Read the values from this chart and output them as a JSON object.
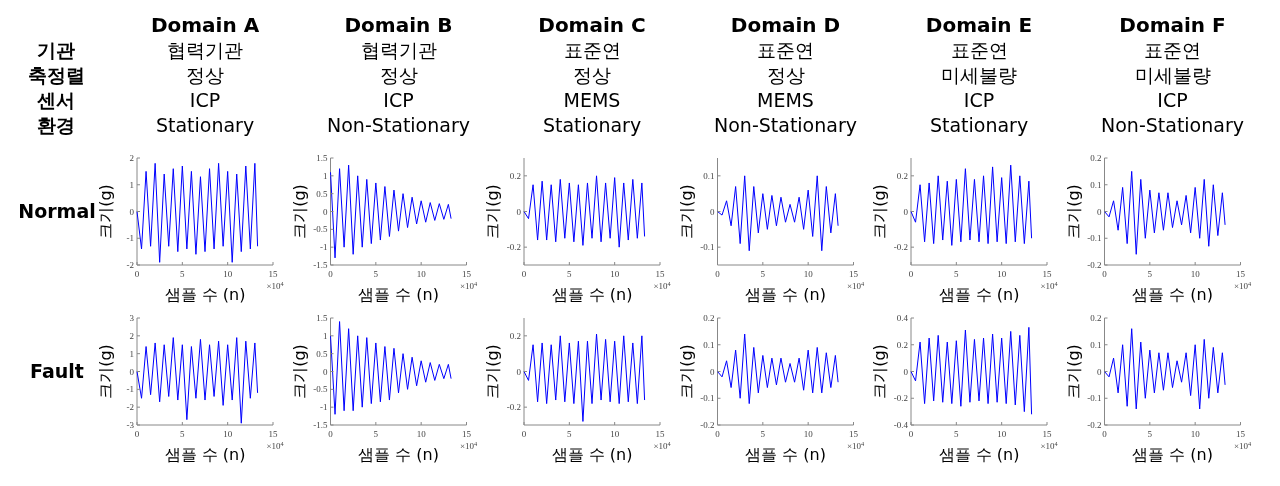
{
  "chart_data": [
    {
      "type": "other",
      "annotations": [
        "기관",
        "축정렬",
        "센서",
        "환경"
      ]
    },
    {
      "type": "line",
      "title": "Domain A",
      "subtitle": "협력기관\n정상\nICP\nStationary",
      "xlabel": "샘플 수 (n)",
      "ylabel": "크기(g)",
      "annotations": [
        "Normal",
        "×10$^{4}$"
      ],
      "color": "#0000ff",
      "xlim": [
        0,
        15
      ],
      "xticks": [
        0,
        5,
        10,
        15
      ],
      "ylim": [
        -2,
        2
      ],
      "yticks": [
        -2,
        -1,
        0,
        1,
        2
      ],
      "x": [
        0,
        0.5,
        1,
        1.5,
        2,
        2.5,
        3,
        3.5,
        4,
        4.5,
        5,
        5.5,
        6,
        6.5,
        7,
        7.5,
        8,
        8.5,
        9,
        9.5,
        10,
        10.5,
        11,
        11.5,
        12,
        12.5,
        13,
        13.3
      ],
      "values": [
        0,
        -1.4,
        1.5,
        -1.3,
        1.8,
        -1.9,
        1.4,
        -1.3,
        1.6,
        -1.5,
        1.7,
        -1.4,
        1.5,
        -1.6,
        1.3,
        -1.5,
        1.6,
        -1.4,
        1.8,
        -1.3,
        1.5,
        -1.9,
        1.4,
        -1.5,
        1.7,
        -1.4,
        1.8,
        -1.3
      ]
    },
    {
      "type": "line",
      "title": "Domain B",
      "subtitle": "협력기관\n정상\nICP\nNon-Stationary",
      "xlabel": "샘플 수 (n)",
      "ylabel": "크기(g)",
      "annotations": [
        "×10$^{4}$"
      ],
      "color": "#0000ff",
      "xlim": [
        0,
        15
      ],
      "xticks": [
        0,
        5,
        10,
        15
      ],
      "ylim": [
        -1.5,
        1.5
      ],
      "yticks": [
        -1.5,
        -1,
        -0.5,
        0,
        0.5,
        1,
        1.5
      ],
      "x": [
        0,
        0.5,
        1,
        1.5,
        2,
        2.5,
        3,
        3.5,
        4,
        4.5,
        5,
        5.5,
        6,
        6.5,
        7,
        7.5,
        8,
        8.5,
        9,
        9.5,
        10,
        10.5,
        11,
        11.5,
        12,
        12.5,
        13,
        13.3
      ],
      "values": [
        1.1,
        -1.3,
        1.2,
        -1.0,
        1.3,
        -1.2,
        1.0,
        -1.0,
        0.9,
        -0.9,
        0.8,
        -0.8,
        0.7,
        -0.7,
        0.6,
        -0.55,
        0.5,
        -0.45,
        0.4,
        -0.35,
        0.3,
        -0.3,
        0.25,
        -0.25,
        0.22,
        -0.22,
        0.2,
        -0.2
      ]
    },
    {
      "type": "line",
      "title": "Domain C",
      "subtitle": "표준연\n정상\nMEMS\nStationary",
      "xlabel": "샘플 수 (n)",
      "ylabel": "크기(g)",
      "annotations": [
        "×10$^{4}$"
      ],
      "color": "#0000ff",
      "xlim": [
        0,
        15
      ],
      "xticks": [
        0,
        5,
        10,
        15
      ],
      "ylim": [
        -0.3,
        0.3
      ],
      "yticks": [
        -0.2,
        0,
        0.2
      ],
      "x": [
        0,
        0.5,
        1,
        1.5,
        2,
        2.5,
        3,
        3.5,
        4,
        4.5,
        5,
        5.5,
        6,
        6.5,
        7,
        7.5,
        8,
        8.5,
        9,
        9.5,
        10,
        10.5,
        11,
        11.5,
        12,
        12.5,
        13,
        13.3
      ],
      "values": [
        0,
        -0.04,
        0.15,
        -0.16,
        0.17,
        -0.16,
        0.15,
        -0.17,
        0.18,
        -0.15,
        0.16,
        -0.17,
        0.15,
        -0.19,
        0.16,
        -0.15,
        0.2,
        -0.17,
        0.16,
        -0.15,
        0.19,
        -0.2,
        0.16,
        -0.16,
        0.18,
        -0.15,
        0.16,
        -0.14
      ]
    },
    {
      "type": "line",
      "title": "Domain D",
      "subtitle": "표준연\n정상\nMEMS\nNon-Stationary",
      "xlabel": "샘플 수 (n)",
      "ylabel": "크기(g)",
      "annotations": [
        "×10$^{4}$"
      ],
      "color": "#0000ff",
      "xlim": [
        0,
        15
      ],
      "xticks": [
        0,
        5,
        10,
        15
      ],
      "ylim": [
        -0.15,
        0.15
      ],
      "yticks": [
        -0.1,
        0,
        0.1
      ],
      "x": [
        0,
        0.5,
        1,
        1.5,
        2,
        2.5,
        3,
        3.5,
        4,
        4.5,
        5,
        5.5,
        6,
        6.5,
        7,
        7.5,
        8,
        8.5,
        9,
        9.5,
        10,
        10.5,
        11,
        11.5,
        12,
        12.5,
        13,
        13.3
      ],
      "values": [
        0,
        -0.01,
        0.03,
        -0.04,
        0.07,
        -0.09,
        0.1,
        -0.11,
        0.07,
        -0.06,
        0.05,
        -0.05,
        0.045,
        -0.04,
        0.04,
        -0.03,
        0.02,
        -0.03,
        0.04,
        -0.05,
        0.06,
        -0.07,
        0.1,
        -0.11,
        0.07,
        -0.06,
        0.05,
        -0.04
      ]
    },
    {
      "type": "line",
      "title": "Domain E",
      "subtitle": "표준연\n미세불량\nICP\nStationary",
      "xlabel": "샘플 수 (n)",
      "ylabel": "크기(g)",
      "annotations": [
        "×10$^{4}$"
      ],
      "color": "#0000ff",
      "xlim": [
        0,
        15
      ],
      "xticks": [
        0,
        5,
        10,
        15
      ],
      "ylim": [
        -0.3,
        0.3
      ],
      "yticks": [
        -0.2,
        0,
        0.2
      ],
      "x": [
        0,
        0.5,
        1,
        1.5,
        2,
        2.5,
        3,
        3.5,
        4,
        4.5,
        5,
        5.5,
        6,
        6.5,
        7,
        7.5,
        8,
        8.5,
        9,
        9.5,
        10,
        10.5,
        11,
        11.5,
        12,
        12.5,
        13,
        13.3
      ],
      "values": [
        0,
        -0.06,
        0.15,
        -0.17,
        0.16,
        -0.18,
        0.2,
        -0.16,
        0.17,
        -0.19,
        0.18,
        -0.17,
        0.24,
        -0.16,
        0.18,
        -0.17,
        0.2,
        -0.18,
        0.25,
        -0.17,
        0.19,
        -0.18,
        0.26,
        -0.17,
        0.2,
        -0.18,
        0.17,
        -0.15
      ]
    },
    {
      "type": "line",
      "title": "Domain F",
      "subtitle": "표준연\n미세불량\nICP\nNon-Stationary",
      "xlabel": "샘플 수 (n)",
      "ylabel": "크기(g)",
      "annotations": [
        "×10$^{4}$"
      ],
      "color": "#0000ff",
      "xlim": [
        0,
        15
      ],
      "xticks": [
        0,
        5,
        10,
        15
      ],
      "ylim": [
        -0.2,
        0.2
      ],
      "yticks": [
        -0.2,
        -0.1,
        0,
        0.1,
        0.2
      ],
      "x": [
        0,
        0.5,
        1,
        1.5,
        2,
        2.5,
        3,
        3.5,
        4,
        4.5,
        5,
        5.5,
        6,
        6.5,
        7,
        7.5,
        8,
        8.5,
        9,
        9.5,
        10,
        10.5,
        11,
        11.5,
        12,
        12.5,
        13,
        13.3
      ],
      "values": [
        0,
        -0.02,
        0.04,
        -0.07,
        0.09,
        -0.12,
        0.15,
        -0.16,
        0.12,
        -0.1,
        0.08,
        -0.08,
        0.07,
        -0.07,
        0.07,
        -0.06,
        0.04,
        -0.05,
        0.06,
        -0.08,
        0.09,
        -0.1,
        0.12,
        -0.13,
        0.1,
        -0.09,
        0.07,
        -0.05
      ]
    },
    {
      "type": "line",
      "xlabel": "샘플 수 (n)",
      "ylabel": "크기(g)",
      "annotations": [
        "Fault",
        "×10$^{4}$"
      ],
      "color": "#0000ff",
      "xlim": [
        0,
        15
      ],
      "xticks": [
        0,
        5,
        10,
        15
      ],
      "ylim": [
        -3,
        3
      ],
      "yticks": [
        -3,
        -2,
        -1,
        0,
        1,
        2,
        3
      ],
      "x": [
        0,
        0.5,
        1,
        1.5,
        2,
        2.5,
        3,
        3.5,
        4,
        4.5,
        5,
        5.5,
        6,
        6.5,
        7,
        7.5,
        8,
        8.5,
        9,
        9.5,
        10,
        10.5,
        11,
        11.5,
        12,
        12.5,
        13,
        13.3
      ],
      "values": [
        0,
        -1.5,
        1.4,
        -1.3,
        1.6,
        -1.7,
        1.5,
        -1.4,
        1.9,
        -1.6,
        1.5,
        -2.7,
        1.4,
        -1.5,
        1.8,
        -1.6,
        1.5,
        -1.4,
        1.7,
        -1.9,
        1.5,
        -1.6,
        1.9,
        -2.9,
        1.7,
        -1.5,
        1.6,
        -1.2
      ]
    },
    {
      "type": "line",
      "xlabel": "샘플 수 (n)",
      "ylabel": "크기(g)",
      "annotations": [
        "×10$^{4}$"
      ],
      "color": "#0000ff",
      "xlim": [
        0,
        15
      ],
      "xticks": [
        0,
        5,
        10,
        15
      ],
      "ylim": [
        -1.5,
        1.5
      ],
      "yticks": [
        -1.5,
        -1,
        -0.5,
        0,
        0.5,
        1,
        1.5
      ],
      "x": [
        0,
        0.5,
        1,
        1.5,
        2,
        2.5,
        3,
        3.5,
        4,
        4.5,
        5,
        5.5,
        6,
        6.5,
        7,
        7.5,
        8,
        8.5,
        9,
        9.5,
        10,
        10.5,
        11,
        11.5,
        12,
        12.5,
        13,
        13.3
      ],
      "values": [
        1.0,
        -1.2,
        1.4,
        -1.1,
        1.2,
        -1.1,
        1.0,
        -1.0,
        0.95,
        -0.9,
        0.8,
        -0.85,
        0.7,
        -0.8,
        0.65,
        -0.6,
        0.5,
        -0.5,
        0.4,
        -0.4,
        0.3,
        -0.3,
        0.25,
        -0.25,
        0.2,
        -0.2,
        0.2,
        -0.2
      ]
    },
    {
      "type": "line",
      "xlabel": "샘플 수 (n)",
      "ylabel": "크기(g)",
      "annotations": [
        "×10$^{4}$"
      ],
      "color": "#0000ff",
      "xlim": [
        0,
        15
      ],
      "xticks": [
        0,
        5,
        10,
        15
      ],
      "ylim": [
        -0.3,
        0.3
      ],
      "yticks": [
        -0.2,
        0,
        0.2
      ],
      "x": [
        0,
        0.5,
        1,
        1.5,
        2,
        2.5,
        3,
        3.5,
        4,
        4.5,
        5,
        5.5,
        6,
        6.5,
        7,
        7.5,
        8,
        8.5,
        9,
        9.5,
        10,
        10.5,
        11,
        11.5,
        12,
        12.5,
        13,
        13.3
      ],
      "values": [
        0,
        -0.05,
        0.15,
        -0.17,
        0.16,
        -0.18,
        0.15,
        -0.16,
        0.2,
        -0.17,
        0.16,
        -0.18,
        0.17,
        -0.28,
        0.17,
        -0.18,
        0.21,
        -0.16,
        0.18,
        -0.17,
        0.17,
        -0.18,
        0.2,
        -0.17,
        0.16,
        -0.18,
        0.2,
        -0.16
      ]
    },
    {
      "type": "line",
      "xlabel": "샘플 수 (n)",
      "ylabel": "크기(g)",
      "annotations": [
        "×10$^{4}$"
      ],
      "color": "#0000ff",
      "xlim": [
        0,
        15
      ],
      "xticks": [
        0,
        5,
        10,
        15
      ],
      "ylim": [
        -0.2,
        0.2
      ],
      "yticks": [
        -0.2,
        -0.1,
        0,
        0.1,
        0.2
      ],
      "x": [
        0,
        0.5,
        1,
        1.5,
        2,
        2.5,
        3,
        3.5,
        4,
        4.5,
        5,
        5.5,
        6,
        6.5,
        7,
        7.5,
        8,
        8.5,
        9,
        9.5,
        10,
        10.5,
        11,
        11.5,
        12,
        12.5,
        13,
        13.3
      ],
      "values": [
        0,
        -0.02,
        0.04,
        -0.06,
        0.08,
        -0.1,
        0.14,
        -0.12,
        0.09,
        -0.08,
        0.06,
        -0.06,
        0.05,
        -0.05,
        0.05,
        -0.04,
        0.03,
        -0.04,
        0.05,
        -0.07,
        0.08,
        -0.08,
        0.09,
        -0.08,
        0.07,
        -0.06,
        0.06,
        -0.04
      ]
    },
    {
      "type": "line",
      "xlabel": "샘플 수 (n)",
      "ylabel": "크기(g)",
      "annotations": [
        "×10$^{4}$"
      ],
      "color": "#0000ff",
      "xlim": [
        0,
        15
      ],
      "xticks": [
        0,
        5,
        10,
        15
      ],
      "ylim": [
        -0.4,
        0.4
      ],
      "yticks": [
        -0.4,
        -0.2,
        0,
        0.2,
        0.4
      ],
      "x": [
        0,
        0.5,
        1,
        1.5,
        2,
        2.5,
        3,
        3.5,
        4,
        4.5,
        5,
        5.5,
        6,
        6.5,
        7,
        7.5,
        8,
        8.5,
        9,
        9.5,
        10,
        10.5,
        11,
        11.5,
        12,
        12.5,
        13,
        13.3
      ],
      "values": [
        0,
        -0.07,
        0.22,
        -0.24,
        0.25,
        -0.22,
        0.27,
        -0.23,
        0.22,
        -0.24,
        0.23,
        -0.26,
        0.31,
        -0.23,
        0.24,
        -0.22,
        0.25,
        -0.24,
        0.28,
        -0.23,
        0.25,
        -0.24,
        0.3,
        -0.25,
        0.27,
        -0.3,
        0.33,
        -0.32
      ]
    },
    {
      "type": "line",
      "xlabel": "샘플 수 (n)",
      "ylabel": "크기(g)",
      "annotations": [
        "×10$^{4}$"
      ],
      "color": "#0000ff",
      "xlim": [
        0,
        15
      ],
      "xticks": [
        0,
        5,
        10,
        15
      ],
      "ylim": [
        -0.2,
        0.2
      ],
      "yticks": [
        -0.2,
        -0.1,
        0,
        0.1,
        0.2
      ],
      "x": [
        0,
        0.5,
        1,
        1.5,
        2,
        2.5,
        3,
        3.5,
        4,
        4.5,
        5,
        5.5,
        6,
        6.5,
        7,
        7.5,
        8,
        8.5,
        9,
        9.5,
        10,
        10.5,
        11,
        11.5,
        12,
        12.5,
        13,
        13.3
      ],
      "values": [
        0,
        -0.02,
        0.05,
        -0.08,
        0.1,
        -0.13,
        0.16,
        -0.14,
        0.11,
        -0.1,
        0.08,
        -0.08,
        0.07,
        -0.07,
        0.07,
        -0.06,
        0.04,
        -0.04,
        0.07,
        -0.09,
        0.1,
        -0.14,
        0.12,
        -0.1,
        0.09,
        -0.08,
        0.07,
        -0.05
      ]
    }
  ]
}
